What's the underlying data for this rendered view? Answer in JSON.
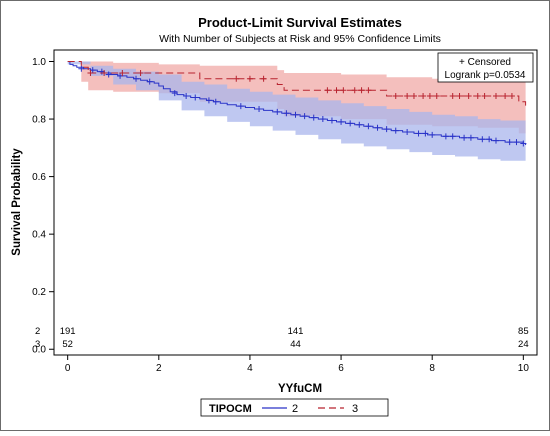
{
  "chart_data": {
    "type": "line",
    "title": "Product-Limit Survival Estimates",
    "subtitle": "With Number of Subjects at Risk and 95% Confidence Limits",
    "xlabel": "YYfuCM",
    "ylabel": "Survival Probability",
    "xlim": [
      -0.3,
      10.3
    ],
    "ylim": [
      -0.02,
      1.04
    ],
    "x_ticks": [
      "0",
      "2",
      "4",
      "6",
      "8",
      "10"
    ],
    "y_ticks": [
      "0.0",
      "0.2",
      "0.4",
      "0.6",
      "0.8",
      "1.0"
    ],
    "grid": false,
    "inset": {
      "censored_label": "+ Censored",
      "logrank": "Logrank p=0.0534"
    },
    "legend": {
      "title": "TIPOCM",
      "position": "bottom"
    },
    "series": [
      {
        "name": "2",
        "color": "#2a33c8",
        "band_color": "#a9b6ec",
        "steps": [
          [
            0,
            1.0
          ],
          [
            0.05,
            0.99
          ],
          [
            0.12,
            0.985
          ],
          [
            0.2,
            0.98
          ],
          [
            0.35,
            0.975
          ],
          [
            0.5,
            0.97
          ],
          [
            0.65,
            0.965
          ],
          [
            0.8,
            0.96
          ],
          [
            0.95,
            0.955
          ],
          [
            1.1,
            0.95
          ],
          [
            1.3,
            0.945
          ],
          [
            1.45,
            0.94
          ],
          [
            1.6,
            0.935
          ],
          [
            1.75,
            0.93
          ],
          [
            1.9,
            0.925
          ],
          [
            2.0,
            0.915
          ],
          [
            2.1,
            0.905
          ],
          [
            2.25,
            0.895
          ],
          [
            2.4,
            0.885
          ],
          [
            2.55,
            0.88
          ],
          [
            2.7,
            0.875
          ],
          [
            2.9,
            0.87
          ],
          [
            3.05,
            0.865
          ],
          [
            3.2,
            0.86
          ],
          [
            3.35,
            0.855
          ],
          [
            3.5,
            0.85
          ],
          [
            3.7,
            0.845
          ],
          [
            3.9,
            0.84
          ],
          [
            4.1,
            0.835
          ],
          [
            4.3,
            0.83
          ],
          [
            4.5,
            0.825
          ],
          [
            4.7,
            0.82
          ],
          [
            4.9,
            0.815
          ],
          [
            5.1,
            0.81
          ],
          [
            5.3,
            0.805
          ],
          [
            5.5,
            0.8
          ],
          [
            5.7,
            0.795
          ],
          [
            5.9,
            0.79
          ],
          [
            6.1,
            0.785
          ],
          [
            6.3,
            0.78
          ],
          [
            6.5,
            0.775
          ],
          [
            6.7,
            0.77
          ],
          [
            6.9,
            0.765
          ],
          [
            7.1,
            0.76
          ],
          [
            7.35,
            0.755
          ],
          [
            7.6,
            0.75
          ],
          [
            7.9,
            0.745
          ],
          [
            8.2,
            0.74
          ],
          [
            8.6,
            0.735
          ],
          [
            9.0,
            0.73
          ],
          [
            9.3,
            0.725
          ],
          [
            9.6,
            0.72
          ],
          [
            10.0,
            0.715
          ],
          [
            10.05,
            0.71
          ]
        ],
        "lower": [
          [
            0,
            0.99
          ],
          [
            0.5,
            0.95
          ],
          [
            1.0,
            0.92
          ],
          [
            1.5,
            0.9
          ],
          [
            2.0,
            0.865
          ],
          [
            2.5,
            0.83
          ],
          [
            3.0,
            0.81
          ],
          [
            3.5,
            0.79
          ],
          [
            4.0,
            0.775
          ],
          [
            4.5,
            0.76
          ],
          [
            5.0,
            0.745
          ],
          [
            5.5,
            0.73
          ],
          [
            6.0,
            0.715
          ],
          [
            6.5,
            0.705
          ],
          [
            7.0,
            0.695
          ],
          [
            7.5,
            0.685
          ],
          [
            8.0,
            0.675
          ],
          [
            8.5,
            0.67
          ],
          [
            9.0,
            0.66
          ],
          [
            9.5,
            0.655
          ],
          [
            10.05,
            0.64
          ]
        ],
        "upper": [
          [
            0,
            1.0
          ],
          [
            0.5,
            0.985
          ],
          [
            1.0,
            0.975
          ],
          [
            1.5,
            0.965
          ],
          [
            2.0,
            0.955
          ],
          [
            2.5,
            0.93
          ],
          [
            3.0,
            0.92
          ],
          [
            3.5,
            0.905
          ],
          [
            4.0,
            0.895
          ],
          [
            4.5,
            0.885
          ],
          [
            5.0,
            0.875
          ],
          [
            5.5,
            0.865
          ],
          [
            6.0,
            0.855
          ],
          [
            6.5,
            0.845
          ],
          [
            7.0,
            0.835
          ],
          [
            7.5,
            0.825
          ],
          [
            8.0,
            0.815
          ],
          [
            8.5,
            0.81
          ],
          [
            9.0,
            0.8
          ],
          [
            9.5,
            0.795
          ],
          [
            10.05,
            0.785
          ]
        ],
        "censored": [
          [
            0.3,
            0.975
          ],
          [
            0.55,
            0.97
          ],
          [
            0.75,
            0.965
          ],
          [
            0.9,
            0.955
          ],
          [
            1.15,
            0.95
          ],
          [
            1.5,
            0.94
          ],
          [
            1.8,
            0.93
          ],
          [
            2.35,
            0.89
          ],
          [
            2.6,
            0.88
          ],
          [
            2.8,
            0.875
          ],
          [
            3.1,
            0.865
          ],
          [
            3.25,
            0.86
          ],
          [
            3.8,
            0.845
          ],
          [
            4.2,
            0.835
          ],
          [
            4.6,
            0.825
          ],
          [
            4.8,
            0.82
          ],
          [
            5.0,
            0.815
          ],
          [
            5.2,
            0.81
          ],
          [
            5.4,
            0.805
          ],
          [
            5.6,
            0.8
          ],
          [
            5.8,
            0.795
          ],
          [
            6.0,
            0.79
          ],
          [
            6.2,
            0.785
          ],
          [
            6.4,
            0.78
          ],
          [
            6.6,
            0.775
          ],
          [
            6.8,
            0.77
          ],
          [
            7.0,
            0.765
          ],
          [
            7.2,
            0.76
          ],
          [
            7.45,
            0.755
          ],
          [
            7.7,
            0.75
          ],
          [
            7.85,
            0.75
          ],
          [
            8.0,
            0.745
          ],
          [
            8.3,
            0.74
          ],
          [
            8.45,
            0.74
          ],
          [
            8.7,
            0.735
          ],
          [
            8.85,
            0.735
          ],
          [
            9.1,
            0.73
          ],
          [
            9.25,
            0.73
          ],
          [
            9.4,
            0.725
          ],
          [
            9.7,
            0.72
          ],
          [
            9.85,
            0.72
          ],
          [
            10.0,
            0.715
          ]
        ]
      },
      {
        "name": "3",
        "color": "#b8232f",
        "band_color": "#f0a9a7",
        "steps": [
          [
            0,
            1.0
          ],
          [
            0.3,
            0.98
          ],
          [
            0.45,
            0.96
          ],
          [
            2.9,
            0.94
          ],
          [
            4.6,
            0.92
          ],
          [
            4.75,
            0.9
          ],
          [
            7.0,
            0.88
          ],
          [
            9.9,
            0.86
          ],
          [
            10.05,
            0.84
          ]
        ],
        "lower": [
          [
            0,
            1.0
          ],
          [
            0.3,
            0.93
          ],
          [
            0.45,
            0.9
          ],
          [
            1.0,
            0.895
          ],
          [
            2.0,
            0.89
          ],
          [
            2.9,
            0.86
          ],
          [
            4.6,
            0.835
          ],
          [
            4.75,
            0.81
          ],
          [
            6.0,
            0.8
          ],
          [
            7.0,
            0.78
          ],
          [
            8.0,
            0.775
          ],
          [
            9.0,
            0.77
          ],
          [
            9.9,
            0.75
          ],
          [
            10.05,
            0.72
          ]
        ],
        "upper": [
          [
            0,
            1.0
          ],
          [
            0.3,
            1.0
          ],
          [
            0.45,
            1.0
          ],
          [
            1.0,
            0.995
          ],
          [
            2.0,
            0.99
          ],
          [
            2.9,
            0.985
          ],
          [
            4.6,
            0.97
          ],
          [
            4.75,
            0.96
          ],
          [
            6.0,
            0.955
          ],
          [
            7.0,
            0.945
          ],
          [
            8.0,
            0.94
          ],
          [
            9.0,
            0.935
          ],
          [
            9.9,
            0.93
          ],
          [
            10.05,
            0.92
          ]
        ],
        "censored": [
          [
            0.5,
            0.96
          ],
          [
            0.8,
            0.96
          ],
          [
            1.2,
            0.96
          ],
          [
            1.6,
            0.96
          ],
          [
            3.7,
            0.94
          ],
          [
            4.0,
            0.94
          ],
          [
            4.3,
            0.94
          ],
          [
            5.7,
            0.9
          ],
          [
            5.9,
            0.9
          ],
          [
            6.05,
            0.9
          ],
          [
            6.3,
            0.9
          ],
          [
            6.45,
            0.9
          ],
          [
            6.6,
            0.9
          ],
          [
            7.2,
            0.88
          ],
          [
            7.45,
            0.88
          ],
          [
            7.6,
            0.88
          ],
          [
            7.8,
            0.88
          ],
          [
            7.95,
            0.88
          ],
          [
            8.1,
            0.88
          ],
          [
            8.45,
            0.88
          ],
          [
            8.6,
            0.88
          ],
          [
            8.8,
            0.88
          ],
          [
            9.0,
            0.88
          ],
          [
            9.15,
            0.88
          ],
          [
            9.4,
            0.88
          ],
          [
            9.6,
            0.88
          ],
          [
            9.75,
            0.88
          ]
        ]
      }
    ],
    "at_risk": [
      {
        "group": "2",
        "values": [
          {
            "x": 0,
            "label": "191"
          },
          {
            "x": 5,
            "label": "141"
          },
          {
            "x": 10,
            "label": "85"
          }
        ]
      },
      {
        "group": "3",
        "values": [
          {
            "x": 0,
            "label": "52"
          },
          {
            "x": 5,
            "label": "44"
          },
          {
            "x": 10,
            "label": "24"
          }
        ]
      }
    ]
  }
}
